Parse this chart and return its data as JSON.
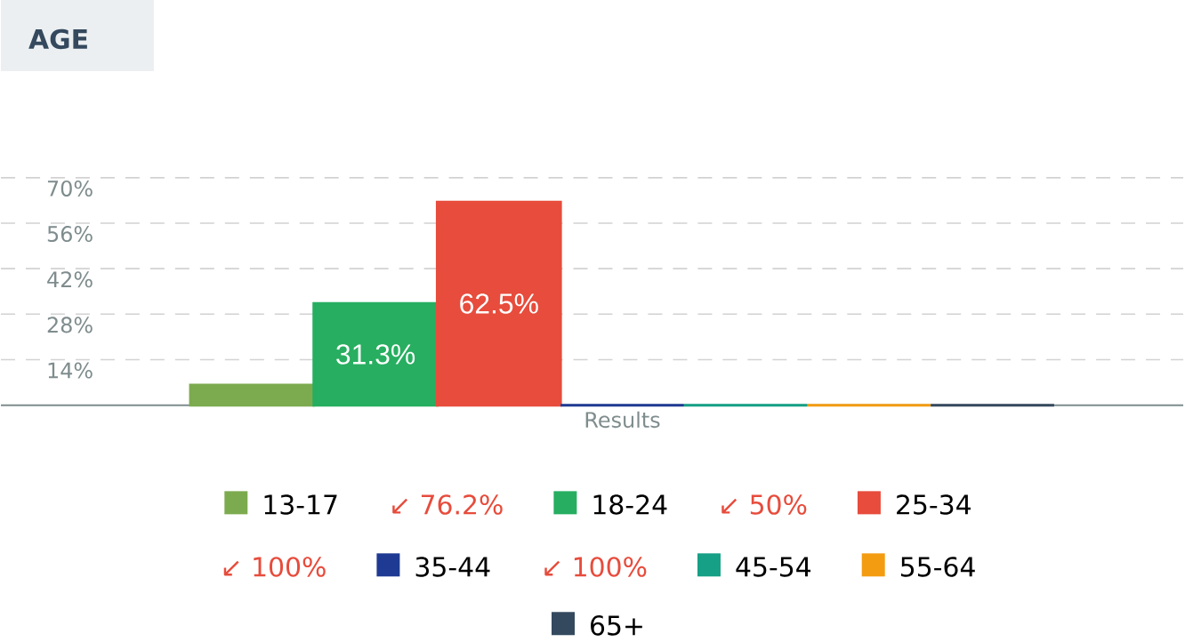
{
  "chart_data": {
    "type": "bar",
    "title": "AGE",
    "categories": [
      "Results"
    ],
    "series": [
      {
        "name": "13-17",
        "color": "#7cab4f",
        "values": [
          6.2
        ]
      },
      {
        "name": "18-24",
        "color": "#27ae60",
        "values": [
          31.3
        ],
        "value_labels": [
          "31.3%"
        ]
      },
      {
        "name": "25-34",
        "color": "#e74c3c",
        "values": [
          62.5
        ],
        "value_labels": [
          "62.5%"
        ]
      },
      {
        "name": "35-44",
        "color": "#1f3a93",
        "values": [
          0
        ]
      },
      {
        "name": "45-54",
        "color": "#16a085",
        "values": [
          0
        ]
      },
      {
        "name": "55-64",
        "color": "#f39c12",
        "values": [
          0
        ]
      },
      {
        "name": "65+",
        "color": "#34495e",
        "values": [
          0
        ]
      }
    ],
    "ylim": [
      0,
      70
    ],
    "yticks": [
      {
        "value": 14,
        "label": "14%"
      },
      {
        "value": 28,
        "label": "28%"
      },
      {
        "value": 42,
        "label": "42%"
      },
      {
        "value": 56,
        "label": "56%"
      },
      {
        "value": 70,
        "label": "70%"
      }
    ],
    "grid": "y",
    "legend": "bottom",
    "annotations": [
      "↙ 76.2%",
      "↙ 50%",
      "↙ 100%",
      "↙ 100%"
    ]
  }
}
